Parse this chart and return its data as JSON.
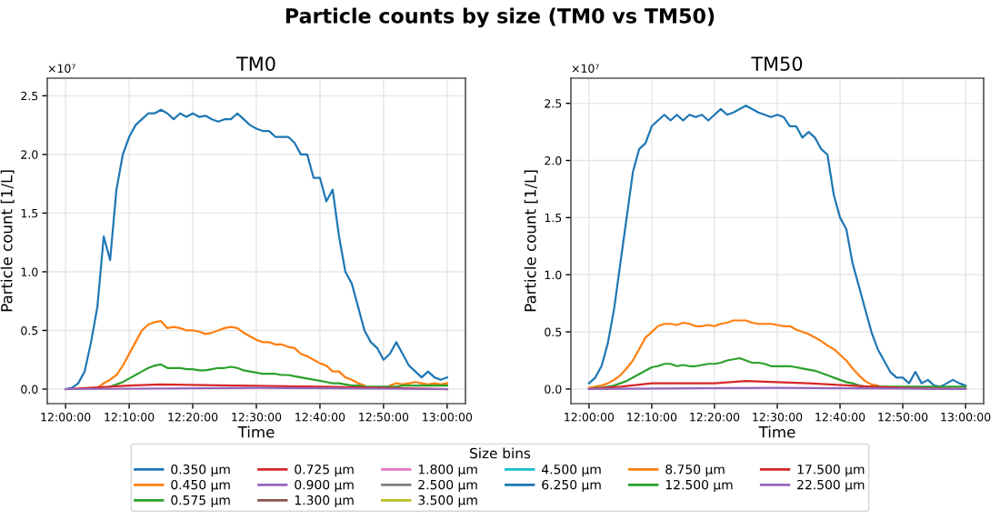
{
  "chart_data": [
    {
      "type": "line",
      "title": "TM0",
      "xlabel": "Time",
      "ylabel": "Particle count [1/L]",
      "legend_title": "Size bins",
      "legend": "bottom",
      "grid": true,
      "marker": "none",
      "line_style": "solid",
      "annotations": [
        "Particle counts by size (TM0 vs TM50)",
        "×10⁷"
      ],
      "xlim": [
        11.952,
        13.048
      ],
      "ylim": [
        -0.124,
        2.65
      ],
      "xticks": [
        {
          "value": 12.0,
          "label": "12:00:00"
        },
        {
          "value": 12.1667,
          "label": "12:10:00"
        },
        {
          "value": 12.3333,
          "label": "12:20:00"
        },
        {
          "value": 12.5,
          "label": "12:30:00"
        },
        {
          "value": 12.6667,
          "label": "12:40:00"
        },
        {
          "value": 12.8333,
          "label": "12:50:00"
        },
        {
          "value": 13.0,
          "label": "13:00:00"
        }
      ],
      "yticks": [
        {
          "value": 0,
          "label": "0.0"
        },
        0.5,
        {
          "value": 1,
          "label": "1.0"
        },
        1.5,
        {
          "value": 2,
          "label": "2.0"
        },
        2.5
      ],
      "x": [
        12,
        12.0167,
        12.0333,
        12.05,
        12.0667,
        12.0833,
        12.1,
        12.1167,
        12.1333,
        12.15,
        12.1667,
        12.1833,
        12.2,
        12.2167,
        12.2333,
        12.25,
        12.2667,
        12.2833,
        12.3,
        12.3167,
        12.3333,
        12.35,
        12.3667,
        12.3833,
        12.4,
        12.4167,
        12.4333,
        12.45,
        12.4667,
        12.4833,
        12.5,
        12.5167,
        12.5333,
        12.55,
        12.5667,
        12.5833,
        12.6,
        12.6167,
        12.6333,
        12.65,
        12.6667,
        12.6833,
        12.7,
        12.7167,
        12.7333,
        12.75,
        12.7667,
        12.7833,
        12.8,
        12.8167,
        12.8333,
        12.85,
        12.8667,
        12.8833,
        12.9,
        12.9167,
        12.9333,
        12.95,
        12.9667,
        12.9833,
        13
      ],
      "series": [
        {
          "name": "0.350 µm",
          "color": "#1f77b4",
          "values": [
            0,
            0.01,
            0.05,
            0.15,
            0.4,
            0.7,
            1.3,
            1.1,
            1.7,
            2.0,
            2.15,
            2.25,
            2.3,
            2.35,
            2.35,
            2.38,
            2.35,
            2.3,
            2.35,
            2.32,
            2.35,
            2.32,
            2.33,
            2.3,
            2.28,
            2.3,
            2.3,
            2.35,
            2.3,
            2.25,
            2.22,
            2.2,
            2.2,
            2.15,
            2.15,
            2.15,
            2.1,
            2.0,
            2.0,
            1.8,
            1.8,
            1.6,
            1.7,
            1.3,
            1.0,
            0.9,
            0.7,
            0.5,
            0.4,
            0.35,
            0.25,
            0.3,
            0.4,
            0.3,
            0.2,
            0.15,
            0.1,
            0.15,
            0.1,
            0.08,
            0.1
          ]
        },
        {
          "name": "0.450 µm",
          "color": "#ff7f0e",
          "values": [
            null,
            null,
            null,
            null,
            null,
            0.01,
            0.05,
            0.08,
            0.12,
            0.2,
            0.3,
            0.4,
            0.5,
            0.55,
            0.57,
            0.58,
            0.52,
            0.53,
            0.52,
            0.5,
            0.5,
            0.49,
            0.47,
            0.48,
            0.5,
            0.52,
            0.53,
            0.52,
            0.48,
            0.45,
            0.42,
            0.4,
            0.4,
            0.38,
            0.38,
            0.36,
            0.35,
            0.3,
            0.28,
            0.25,
            0.22,
            0.2,
            0.15,
            0.15,
            0.1,
            0.08,
            0.05,
            0.03,
            null,
            null,
            null,
            0.03,
            0.05,
            0.04,
            0.05,
            0.06,
            0.05,
            0.04,
            0.05,
            0.04,
            0.05
          ]
        },
        {
          "name": "0.575 µm",
          "color": "#2ca02c",
          "values": [
            null,
            null,
            null,
            null,
            null,
            null,
            null,
            0.02,
            0.04,
            0.06,
            0.09,
            0.12,
            0.15,
            0.18,
            0.2,
            0.21,
            0.18,
            0.18,
            0.18,
            0.17,
            0.17,
            0.16,
            0.16,
            0.17,
            0.18,
            0.18,
            0.19,
            0.18,
            0.16,
            0.15,
            0.14,
            0.13,
            0.13,
            0.13,
            0.12,
            0.12,
            0.11,
            0.1,
            0.09,
            0.08,
            0.07,
            0.06,
            0.05,
            0.05,
            0.04,
            0.03,
            0.03,
            0.02,
            0.02,
            0.02,
            0.02,
            0.02,
            0.02,
            0.03,
            0.03,
            0.03,
            0.03,
            0.03,
            0.03,
            0.03,
            0.03
          ]
        },
        {
          "name": "0.725 µm",
          "color": "#d62728",
          "x": [
            12,
            12.1667,
            12.25,
            12.45,
            12.6667,
            12.8333,
            13
          ],
          "values": [
            0,
            0.03,
            0.04,
            0.03,
            0.02,
            0.01,
            0
          ]
        },
        {
          "name": "0.900 µm",
          "color": "#9467bd",
          "x": [
            12,
            12.5,
            13
          ],
          "values": [
            0,
            0.01,
            0
          ]
        },
        {
          "name": "1.300 µm",
          "color": "#8c564b",
          "values": [
            null,
            null,
            null,
            null,
            null,
            null,
            null,
            null,
            null,
            null,
            null,
            null,
            null,
            null,
            null,
            null,
            null,
            null,
            null,
            null,
            null,
            null,
            null,
            null,
            null,
            null,
            null,
            null,
            null,
            null,
            null,
            null,
            null,
            null,
            null,
            null,
            null,
            null,
            null,
            null,
            null,
            null,
            null,
            null,
            null,
            null,
            null,
            null,
            null,
            null,
            null,
            null,
            null,
            null,
            null,
            null,
            null,
            null,
            null,
            null,
            null
          ]
        },
        {
          "name": "1.800 µm",
          "color": "#e377c2",
          "values": [
            null,
            null,
            null,
            null,
            null,
            null,
            null,
            null,
            null,
            null,
            null,
            null,
            null,
            null,
            null,
            null,
            null,
            null,
            null,
            null,
            null,
            null,
            null,
            null,
            null,
            null,
            null,
            null,
            null,
            null,
            null,
            null,
            null,
            null,
            null,
            null,
            null,
            null,
            null,
            null,
            null,
            null,
            null,
            null,
            null,
            null,
            null,
            null,
            null,
            null,
            null,
            null,
            null,
            null,
            null,
            null,
            null,
            null,
            null,
            null,
            null
          ]
        },
        {
          "name": "2.500 µm",
          "color": "#7f7f7f",
          "values": [
            null,
            null,
            null,
            null,
            null,
            null,
            null,
            null,
            null,
            null,
            null,
            null,
            null,
            null,
            null,
            null,
            null,
            null,
            null,
            null,
            null,
            null,
            null,
            null,
            null,
            null,
            null,
            null,
            null,
            null,
            null,
            null,
            null,
            null,
            null,
            null,
            null,
            null,
            null,
            null,
            null,
            null,
            null,
            null,
            null,
            null,
            null,
            null,
            null,
            null,
            null,
            null,
            null,
            null,
            null,
            null,
            null,
            null,
            null,
            null,
            null
          ]
        },
        {
          "name": "3.500 µm",
          "color": "#bcbd22",
          "values": [
            null,
            null,
            null,
            null,
            null,
            null,
            null,
            null,
            null,
            null,
            null,
            null,
            null,
            null,
            null,
            null,
            null,
            null,
            null,
            null,
            null,
            null,
            null,
            null,
            null,
            null,
            null,
            null,
            null,
            null,
            null,
            null,
            null,
            null,
            null,
            null,
            null,
            null,
            null,
            null,
            null,
            null,
            null,
            null,
            null,
            null,
            null,
            null,
            null,
            null,
            null,
            null,
            null,
            null,
            null,
            null,
            null,
            null,
            null,
            null,
            null
          ]
        },
        {
          "name": "4.500 µm",
          "color": "#17becf",
          "values": [
            null,
            null,
            null,
            null,
            null,
            null,
            null,
            null,
            null,
            null,
            null,
            null,
            null,
            null,
            null,
            null,
            null,
            null,
            null,
            null,
            null,
            null,
            null,
            null,
            null,
            null,
            null,
            null,
            null,
            null,
            null,
            null,
            null,
            null,
            null,
            null,
            null,
            null,
            null,
            null,
            null,
            null,
            null,
            null,
            null,
            null,
            null,
            null,
            null,
            null,
            null,
            null,
            null,
            null,
            null,
            null,
            null,
            null,
            null,
            null,
            null
          ]
        },
        {
          "name": "6.250 µm",
          "color": "#1f77b4",
          "values": [
            null,
            null,
            null,
            null,
            null,
            null,
            null,
            null,
            null,
            null,
            null,
            null,
            null,
            null,
            null,
            null,
            null,
            null,
            null,
            null,
            null,
            null,
            null,
            null,
            null,
            null,
            null,
            null,
            null,
            null,
            null,
            null,
            null,
            null,
            null,
            null,
            null,
            null,
            null,
            null,
            null,
            null,
            null,
            null,
            null,
            null,
            null,
            null,
            null,
            null,
            null,
            null,
            null,
            null,
            null,
            null,
            null,
            null,
            null,
            null,
            null
          ]
        },
        {
          "name": "8.750 µm",
          "color": "#ff7f0e",
          "values": [
            null,
            null,
            null,
            null,
            null,
            null,
            null,
            null,
            null,
            null,
            null,
            null,
            null,
            null,
            null,
            null,
            null,
            null,
            null,
            null,
            null,
            null,
            null,
            null,
            null,
            null,
            null,
            null,
            null,
            null,
            null,
            null,
            null,
            null,
            null,
            null,
            null,
            null,
            null,
            null,
            null,
            null,
            null,
            null,
            null,
            null,
            null,
            null,
            null,
            null,
            null,
            null,
            null,
            null,
            null,
            null,
            null,
            null,
            null,
            null,
            null
          ]
        },
        {
          "name": "12.500 µm",
          "color": "#2ca02c",
          "values": [
            null,
            null,
            null,
            null,
            null,
            null,
            null,
            null,
            null,
            null,
            null,
            null,
            null,
            null,
            null,
            null,
            null,
            null,
            null,
            null,
            null,
            null,
            null,
            null,
            null,
            null,
            null,
            null,
            null,
            null,
            null,
            null,
            null,
            null,
            null,
            null,
            null,
            null,
            null,
            null,
            null,
            null,
            null,
            null,
            null,
            null,
            null,
            null,
            null,
            null,
            null,
            null,
            null,
            null,
            null,
            null,
            null,
            null,
            null,
            null,
            null
          ]
        },
        {
          "name": "17.500 µm",
          "color": "#d62728",
          "values": [
            null,
            null,
            null,
            null,
            null,
            null,
            null,
            null,
            null,
            null,
            null,
            null,
            null,
            null,
            null,
            null,
            null,
            null,
            null,
            null,
            null,
            null,
            null,
            null,
            null,
            null,
            null,
            null,
            null,
            null,
            null,
            null,
            null,
            null,
            null,
            null,
            null,
            null,
            null,
            null,
            null,
            null,
            null,
            null,
            null,
            null,
            null,
            null,
            null,
            null,
            null,
            null,
            null,
            null,
            null,
            null,
            null,
            null,
            null,
            null,
            null
          ]
        },
        {
          "name": "22.500 µm",
          "color": "#9467bd",
          "values": [
            null,
            null,
            null,
            null,
            null,
            null,
            null,
            null,
            null,
            null,
            null,
            null,
            null,
            null,
            null,
            null,
            null,
            null,
            null,
            null,
            null,
            null,
            null,
            null,
            null,
            null,
            null,
            null,
            null,
            null,
            null,
            null,
            null,
            null,
            null,
            null,
            null,
            null,
            null,
            null,
            null,
            null,
            null,
            null,
            null,
            null,
            null,
            null,
            null,
            null,
            null,
            null,
            null,
            null,
            null,
            null,
            null,
            null,
            null,
            null,
            null
          ]
        }
      ]
    },
    {
      "type": "line",
      "title": "TM50",
      "xlabel": "Time",
      "ylabel": "Particle count [1/L]",
      "grid": true,
      "marker": "none",
      "line_style": "solid",
      "annotations": [
        "×10⁷"
      ],
      "xlim": [
        11.952,
        13.048
      ],
      "ylim": [
        -0.128,
        2.72
      ],
      "xticks": [
        {
          "value": 12.0,
          "label": "12:00:00"
        },
        {
          "value": 12.1667,
          "label": "12:10:00"
        },
        {
          "value": 12.3333,
          "label": "12:20:00"
        },
        {
          "value": 12.5,
          "label": "12:30:00"
        },
        {
          "value": 12.6667,
          "label": "12:40:00"
        },
        {
          "value": 12.8333,
          "label": "12:50:00"
        },
        {
          "value": 13.0,
          "label": "13:00:00"
        }
      ],
      "yticks": [
        {
          "value": 0,
          "label": "0.0"
        },
        0.5,
        {
          "value": 1,
          "label": "1.0"
        },
        1.5,
        {
          "value": 2,
          "label": "2.0"
        },
        2.5
      ],
      "x": [
        12,
        12.0167,
        12.0333,
        12.05,
        12.0667,
        12.0833,
        12.1,
        12.1167,
        12.1333,
        12.15,
        12.1667,
        12.1833,
        12.2,
        12.2167,
        12.2333,
        12.25,
        12.2667,
        12.2833,
        12.3,
        12.3167,
        12.3333,
        12.35,
        12.3667,
        12.3833,
        12.4,
        12.4167,
        12.4333,
        12.45,
        12.4667,
        12.4833,
        12.5,
        12.5167,
        12.5333,
        12.55,
        12.5667,
        12.5833,
        12.6,
        12.6167,
        12.6333,
        12.65,
        12.6667,
        12.6833,
        12.7,
        12.7167,
        12.7333,
        12.75,
        12.7667,
        12.7833,
        12.8,
        12.8167,
        12.8333,
        12.85,
        12.8667,
        12.8833,
        12.9,
        12.9167,
        12.9333,
        12.95,
        12.9667,
        12.9833,
        13
      ],
      "series": [
        {
          "color": "#1f77b4",
          "values": [
            0.05,
            0.1,
            0.2,
            0.4,
            0.7,
            1.1,
            1.5,
            1.9,
            2.1,
            2.15,
            2.3,
            2.35,
            2.4,
            2.35,
            2.4,
            2.35,
            2.4,
            2.38,
            2.4,
            2.35,
            2.4,
            2.45,
            2.4,
            2.42,
            2.45,
            2.48,
            2.45,
            2.42,
            2.4,
            2.38,
            2.4,
            2.38,
            2.3,
            2.3,
            2.2,
            2.25,
            2.2,
            2.1,
            2.05,
            1.7,
            1.5,
            1.4,
            1.1,
            0.9,
            0.7,
            0.5,
            0.35,
            0.25,
            0.15,
            0.1,
            0.1,
            0.05,
            0.15,
            0.05,
            0.08,
            0.03,
            0.02,
            0.05,
            0.08,
            0.05,
            0.03
          ]
        },
        {
          "color": "#ff7f0e",
          "values": [
            0.01,
            0.02,
            0.03,
            0.05,
            0.08,
            0.12,
            0.18,
            0.25,
            0.35,
            0.45,
            0.5,
            0.55,
            0.57,
            0.57,
            0.56,
            0.58,
            0.57,
            0.55,
            0.55,
            0.56,
            0.55,
            0.57,
            0.58,
            0.6,
            0.6,
            0.6,
            0.58,
            0.57,
            0.57,
            0.57,
            0.56,
            0.55,
            0.55,
            0.52,
            0.5,
            0.48,
            0.45,
            0.42,
            0.38,
            0.35,
            0.3,
            0.25,
            0.18,
            0.12,
            0.07,
            0.04,
            0.03,
            null,
            null,
            null,
            null,
            null,
            null,
            null,
            null,
            null,
            null,
            null,
            null,
            null,
            null
          ]
        },
        {
          "color": "#2ca02c",
          "values": [
            null,
            0.01,
            0.01,
            0.02,
            0.03,
            0.05,
            0.07,
            0.1,
            0.13,
            0.16,
            0.19,
            0.2,
            0.22,
            0.22,
            0.2,
            0.21,
            0.2,
            0.2,
            0.21,
            0.22,
            0.22,
            0.23,
            0.25,
            0.26,
            0.27,
            0.25,
            0.23,
            0.23,
            0.22,
            0.2,
            0.2,
            0.2,
            0.2,
            0.19,
            0.18,
            0.17,
            0.16,
            0.14,
            0.12,
            0.1,
            0.08,
            0.06,
            0.05,
            0.03,
            0.02,
            0.02,
            0.02,
            0.02,
            0.02,
            0.02,
            0.02,
            0.02,
            0.02,
            0.02,
            0.02,
            0.02,
            0.02,
            0.02,
            0.02,
            0.02,
            0.02
          ]
        },
        {
          "color": "#d62728",
          "x": [
            12,
            12.0833,
            12.1667,
            12.3333,
            12.4167,
            12.5833,
            12.75,
            12.8333,
            13
          ],
          "values": [
            0,
            0.02,
            0.05,
            0.05,
            0.07,
            0.05,
            0.02,
            0.01,
            0
          ]
        },
        {
          "color": "#9467bd",
          "x": [
            12,
            12.5,
            13
          ],
          "values": [
            0,
            0.01,
            0
          ]
        }
      ]
    }
  ]
}
